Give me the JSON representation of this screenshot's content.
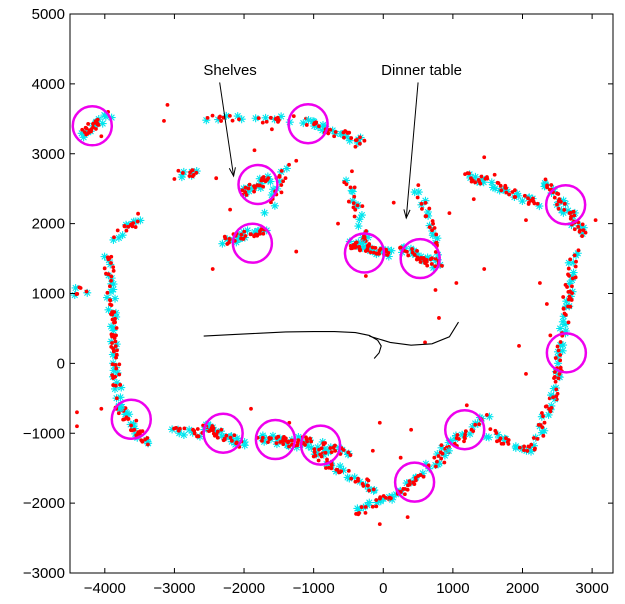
{
  "chart_data": {
    "type": "scatter",
    "title": "",
    "xlabel": "",
    "ylabel": "",
    "xlim": [
      -4500,
      3300
    ],
    "ylim": [
      -3000,
      5000
    ],
    "xticks": [
      -4000,
      -3000,
      -2000,
      -1000,
      0,
      1000,
      2000,
      3000
    ],
    "yticks": [
      -3000,
      -2000,
      -1000,
      0,
      1000,
      2000,
      3000,
      4000,
      5000
    ],
    "xtick_labels": [
      "−4000",
      "−3000",
      "−2000",
      "−1000",
      "0",
      "1000",
      "2000",
      "3000"
    ],
    "ytick_labels": [
      "−3000",
      "−2000",
      "−1000",
      "0",
      "1000",
      "2000",
      "3000",
      "4000",
      "5000"
    ],
    "grid": false,
    "colors": {
      "red_points": "#ff0000",
      "cyan_stars": "#00e5ee",
      "circles": "#ee00ee",
      "trajectory": "#000000"
    },
    "annotations": [
      {
        "text": "Shelves",
        "x": -2200,
        "y": 4130,
        "arrow_from": [
          -2350,
          4020
        ],
        "arrow_to": [
          -2150,
          2680
        ]
      },
      {
        "text": "Dinner table",
        "x": 550,
        "y": 4130,
        "arrow_from": [
          500,
          4020
        ],
        "arrow_to": [
          330,
          2080
        ]
      }
    ],
    "circles": [
      {
        "x": -4180,
        "y": 3400,
        "r": 280
      },
      {
        "x": -1080,
        "y": 3430,
        "r": 280
      },
      {
        "x": -1800,
        "y": 2560,
        "r": 280
      },
      {
        "x": -1880,
        "y": 1720,
        "r": 280
      },
      {
        "x": -270,
        "y": 1580,
        "r": 280
      },
      {
        "x": 530,
        "y": 1500,
        "r": 280
      },
      {
        "x": 2620,
        "y": 2270,
        "r": 280
      },
      {
        "x": 2630,
        "y": 150,
        "r": 280
      },
      {
        "x": -3620,
        "y": -800,
        "r": 280
      },
      {
        "x": -2300,
        "y": -1000,
        "r": 280
      },
      {
        "x": -1550,
        "y": -1090,
        "r": 280
      },
      {
        "x": -900,
        "y": -1170,
        "r": 280
      },
      {
        "x": 1170,
        "y": -950,
        "r": 280
      },
      {
        "x": 450,
        "y": -1700,
        "r": 280
      }
    ],
    "trajectory": [
      [
        -2580,
        390
      ],
      [
        -2200,
        410
      ],
      [
        -1800,
        430
      ],
      [
        -1400,
        450
      ],
      [
        -1000,
        455
      ],
      [
        -700,
        455
      ],
      [
        -400,
        440
      ],
      [
        -200,
        400
      ],
      [
        -80,
        330
      ],
      [
        -30,
        250
      ],
      [
        -60,
        150
      ],
      [
        -130,
        70
      ],
      [
        -200,
        390
      ],
      [
        100,
        300
      ],
      [
        400,
        260
      ],
      [
        700,
        280
      ],
      [
        950,
        380
      ],
      [
        1080,
        590
      ]
    ],
    "segments": [
      {
        "x0": -4350,
        "y0": 3270,
        "x1": -3950,
        "y1": 3560,
        "n": 14
      },
      {
        "x0": -2550,
        "y0": 3500,
        "x1": -1050,
        "y1": 3470,
        "n": 12
      },
      {
        "x0": -1100,
        "y0": 3460,
        "x1": -300,
        "y1": 3180,
        "n": 16
      },
      {
        "x0": -2950,
        "y0": 2700,
        "x1": -2700,
        "y1": 2750,
        "n": 6
      },
      {
        "x0": -2000,
        "y0": 2450,
        "x1": -1600,
        "y1": 2650,
        "n": 14
      },
      {
        "x0": -2300,
        "y0": 1750,
        "x1": -1700,
        "y1": 1900,
        "n": 18
      },
      {
        "x0": -1650,
        "y0": 2200,
        "x1": -1400,
        "y1": 2800,
        "n": 8
      },
      {
        "x0": -500,
        "y0": 2600,
        "x1": -200,
        "y1": 1600,
        "n": 14
      },
      {
        "x0": -450,
        "y0": 1700,
        "x1": 100,
        "y1": 1550,
        "n": 22
      },
      {
        "x0": 250,
        "y0": 1650,
        "x1": 800,
        "y1": 1400,
        "n": 20
      },
      {
        "x0": 500,
        "y0": 2500,
        "x1": 800,
        "y1": 1600,
        "n": 12
      },
      {
        "x0": 1200,
        "y0": 2700,
        "x1": 2200,
        "y1": 2300,
        "n": 22
      },
      {
        "x0": 2300,
        "y0": 2600,
        "x1": 2900,
        "y1": 1850,
        "n": 22
      },
      {
        "x0": 2750,
        "y0": 1600,
        "x1": 2450,
        "y1": -500,
        "n": 32
      },
      {
        "x0": 2450,
        "y0": -500,
        "x1": 2100,
        "y1": -1300,
        "n": 12
      },
      {
        "x0": 2050,
        "y0": -1200,
        "x1": 1500,
        "y1": -1000,
        "n": 10
      },
      {
        "x0": 1500,
        "y0": -750,
        "x1": 800,
        "y1": -1300,
        "n": 16
      },
      {
        "x0": 900,
        "y0": -1300,
        "x1": 100,
        "y1": -1950,
        "n": 18
      },
      {
        "x0": 100,
        "y0": -1900,
        "x1": -400,
        "y1": -2150,
        "n": 10
      },
      {
        "x0": -100,
        "y0": -1800,
        "x1": -500,
        "y1": -1600,
        "n": 8
      },
      {
        "x0": -600,
        "y0": -1550,
        "x1": -1050,
        "y1": -1250,
        "n": 12
      },
      {
        "x0": -1200,
        "y0": -1100,
        "x1": -500,
        "y1": -1300,
        "n": 16
      },
      {
        "x0": -1800,
        "y0": -1050,
        "x1": -1200,
        "y1": -1150,
        "n": 18
      },
      {
        "x0": -2600,
        "y0": -900,
        "x1": -2000,
        "y1": -1150,
        "n": 18
      },
      {
        "x0": -3050,
        "y0": -950,
        "x1": -2600,
        "y1": -1000,
        "n": 8
      },
      {
        "x0": -3800,
        "y0": -600,
        "x1": -3400,
        "y1": -1150,
        "n": 16
      },
      {
        "x0": -3950,
        "y0": 1500,
        "x1": -3800,
        "y1": -700,
        "n": 36
      },
      {
        "x0": -3850,
        "y0": 1800,
        "x1": -3500,
        "y1": 2100,
        "n": 8
      },
      {
        "x0": -4450,
        "y0": 1000,
        "x1": -4300,
        "y1": 1050,
        "n": 3
      }
    ],
    "outliers": [
      [
        -4050,
        3250
      ],
      [
        -3150,
        3470
      ],
      [
        -1600,
        3350
      ],
      [
        -1250,
        2900
      ],
      [
        -400,
        3100
      ],
      [
        -450,
        2750
      ],
      [
        -2200,
        2200
      ],
      [
        -2450,
        1350
      ],
      [
        -1250,
        1600
      ],
      [
        -650,
        2000
      ],
      [
        -300,
        2250
      ],
      [
        150,
        2300
      ],
      [
        950,
        2150
      ],
      [
        750,
        1050
      ],
      [
        1050,
        1150
      ],
      [
        1450,
        2950
      ],
      [
        1600,
        2700
      ],
      [
        1300,
        2350
      ],
      [
        2050,
        2050
      ],
      [
        3050,
        2050
      ],
      [
        2250,
        1150
      ],
      [
        2350,
        850
      ],
      [
        1950,
        250
      ],
      [
        2050,
        -150
      ],
      [
        1450,
        1350
      ],
      [
        400,
        -950
      ],
      [
        250,
        -1350
      ],
      [
        -50,
        -850
      ],
      [
        -150,
        -1250
      ],
      [
        -1350,
        -850
      ],
      [
        -1900,
        -650
      ],
      [
        -4400,
        -900
      ],
      [
        -4050,
        -650
      ],
      [
        -4400,
        -700
      ],
      [
        350,
        -2200
      ],
      [
        -50,
        -2300
      ],
      [
        -3100,
        3700
      ],
      [
        -1850,
        3050
      ],
      [
        -2400,
        2650
      ],
      [
        2400,
        400
      ],
      [
        600,
        300
      ],
      [
        800,
        650
      ],
      [
        -250,
        1250
      ],
      [
        1200,
        -600
      ],
      [
        1700,
        -1150
      ]
    ]
  }
}
